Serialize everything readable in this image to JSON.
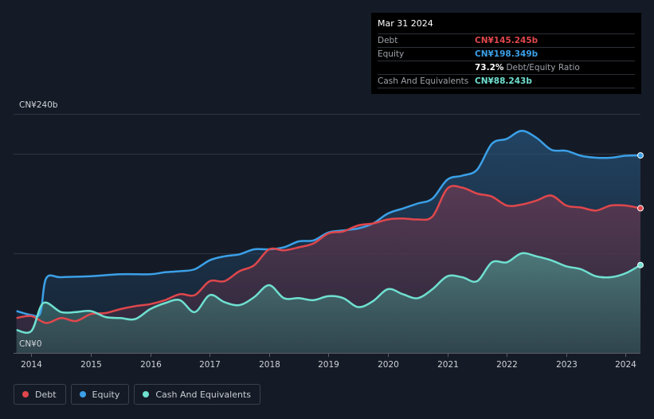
{
  "tooltip": {
    "date": "Mar 31 2024",
    "rows": [
      {
        "label": "Debt",
        "value": "CN¥145.245b",
        "color": "#e0474c",
        "extra": ""
      },
      {
        "label": "Equity",
        "value": "CN¥198.349b",
        "color": "#3ba0e8",
        "extra": ""
      },
      {
        "label": "",
        "value": "73.2%",
        "color": "#ffffff",
        "extra": "Debt/Equity Ratio"
      },
      {
        "label": "Cash And Equivalents",
        "value": "CN¥88.243b",
        "color": "#6fe0d0",
        "extra": ""
      }
    ]
  },
  "legend": [
    {
      "label": "Debt",
      "color": "#e0474c"
    },
    {
      "label": "Equity",
      "color": "#3ba0e8"
    },
    {
      "label": "Cash And Equivalents",
      "color": "#6fe0d0"
    }
  ],
  "chart_data": {
    "type": "area",
    "title": "",
    "xlabel": "",
    "ylabel": "",
    "ylim": [
      0,
      240
    ],
    "xlim": [
      2013.7,
      2024.25
    ],
    "y_tick_labels": [
      {
        "value": 240,
        "label": "CN¥240b"
      },
      {
        "value": 0,
        "label": "CN¥0"
      }
    ],
    "x_ticks": [
      2014,
      2015,
      2016,
      2017,
      2018,
      2019,
      2020,
      2021,
      2022,
      2023,
      2024
    ],
    "x_tick_labels": [
      "2014",
      "2015",
      "2016",
      "2017",
      "2018",
      "2019",
      "2020",
      "2021",
      "2022",
      "2023",
      "2024"
    ],
    "gridlines": [
      0,
      100,
      200,
      240
    ],
    "series": [
      {
        "name": "Equity",
        "color": "#3ba0e8",
        "x": [
          2013.75,
          2014.0,
          2014.15,
          2014.25,
          2014.5,
          2015.0,
          2015.5,
          2016.0,
          2016.25,
          2016.5,
          2016.75,
          2017.0,
          2017.25,
          2017.5,
          2017.75,
          2018.0,
          2018.25,
          2018.5,
          2018.75,
          2019.0,
          2019.25,
          2019.5,
          2019.75,
          2020.0,
          2020.25,
          2020.5,
          2020.75,
          2021.0,
          2021.25,
          2021.5,
          2021.75,
          2022.0,
          2022.25,
          2022.5,
          2022.75,
          2023.0,
          2023.25,
          2023.5,
          2023.75,
          2024.0,
          2024.25
        ],
        "values": [
          42,
          38,
          40,
          75,
          76,
          77,
          79,
          79,
          81,
          82,
          84,
          93,
          97,
          99,
          104,
          104,
          106,
          112,
          113,
          121,
          123,
          125,
          130,
          140,
          145,
          150,
          155,
          174,
          178,
          184,
          210,
          215,
          223,
          216,
          204,
          203,
          198,
          196,
          196,
          198,
          198.349
        ]
      },
      {
        "name": "Debt",
        "color": "#e0474c",
        "x": [
          2013.75,
          2014.0,
          2014.25,
          2014.5,
          2014.75,
          2015.0,
          2015.25,
          2015.5,
          2015.75,
          2016.0,
          2016.25,
          2016.5,
          2016.75,
          2017.0,
          2017.25,
          2017.5,
          2017.75,
          2018.0,
          2018.25,
          2018.5,
          2018.75,
          2019.0,
          2019.25,
          2019.5,
          2019.75,
          2020.0,
          2020.25,
          2020.5,
          2020.75,
          2021.0,
          2021.25,
          2021.5,
          2021.75,
          2022.0,
          2022.25,
          2022.5,
          2022.75,
          2023.0,
          2023.25,
          2023.5,
          2023.75,
          2024.0,
          2024.25
        ],
        "values": [
          35,
          37,
          30,
          35,
          32,
          39,
          40,
          44,
          47,
          49,
          53,
          59,
          58,
          72,
          72,
          82,
          88,
          104,
          103,
          106,
          110,
          120,
          122,
          128,
          130,
          134,
          135,
          134,
          137,
          165,
          166,
          160,
          157,
          148,
          149,
          153,
          158,
          148,
          146,
          143,
          148,
          148,
          145.245
        ]
      },
      {
        "name": "Cash And Equivalents",
        "color": "#6fe0d0",
        "x": [
          2013.75,
          2014.0,
          2014.2,
          2014.5,
          2014.75,
          2015.0,
          2015.25,
          2015.5,
          2015.75,
          2016.0,
          2016.25,
          2016.5,
          2016.75,
          2017.0,
          2017.25,
          2017.5,
          2017.75,
          2018.0,
          2018.25,
          2018.5,
          2018.75,
          2019.0,
          2019.25,
          2019.5,
          2019.75,
          2020.0,
          2020.25,
          2020.5,
          2020.75,
          2021.0,
          2021.25,
          2021.5,
          2021.75,
          2022.0,
          2022.25,
          2022.5,
          2022.75,
          2023.0,
          2023.25,
          2023.5,
          2023.75,
          2024.0,
          2024.25
        ],
        "values": [
          23,
          22,
          50,
          41,
          41,
          42,
          36,
          35,
          34,
          44,
          50,
          53,
          41,
          58,
          51,
          48,
          56,
          68,
          55,
          55,
          53,
          57,
          55,
          46,
          52,
          64,
          59,
          55,
          64,
          77,
          76,
          72,
          91,
          91,
          100,
          97,
          93,
          87,
          84,
          77,
          76,
          80,
          88.243
        ]
      }
    ],
    "annotation_date": "Mar 31 2024",
    "debt_equity_ratio": "73.2%"
  }
}
